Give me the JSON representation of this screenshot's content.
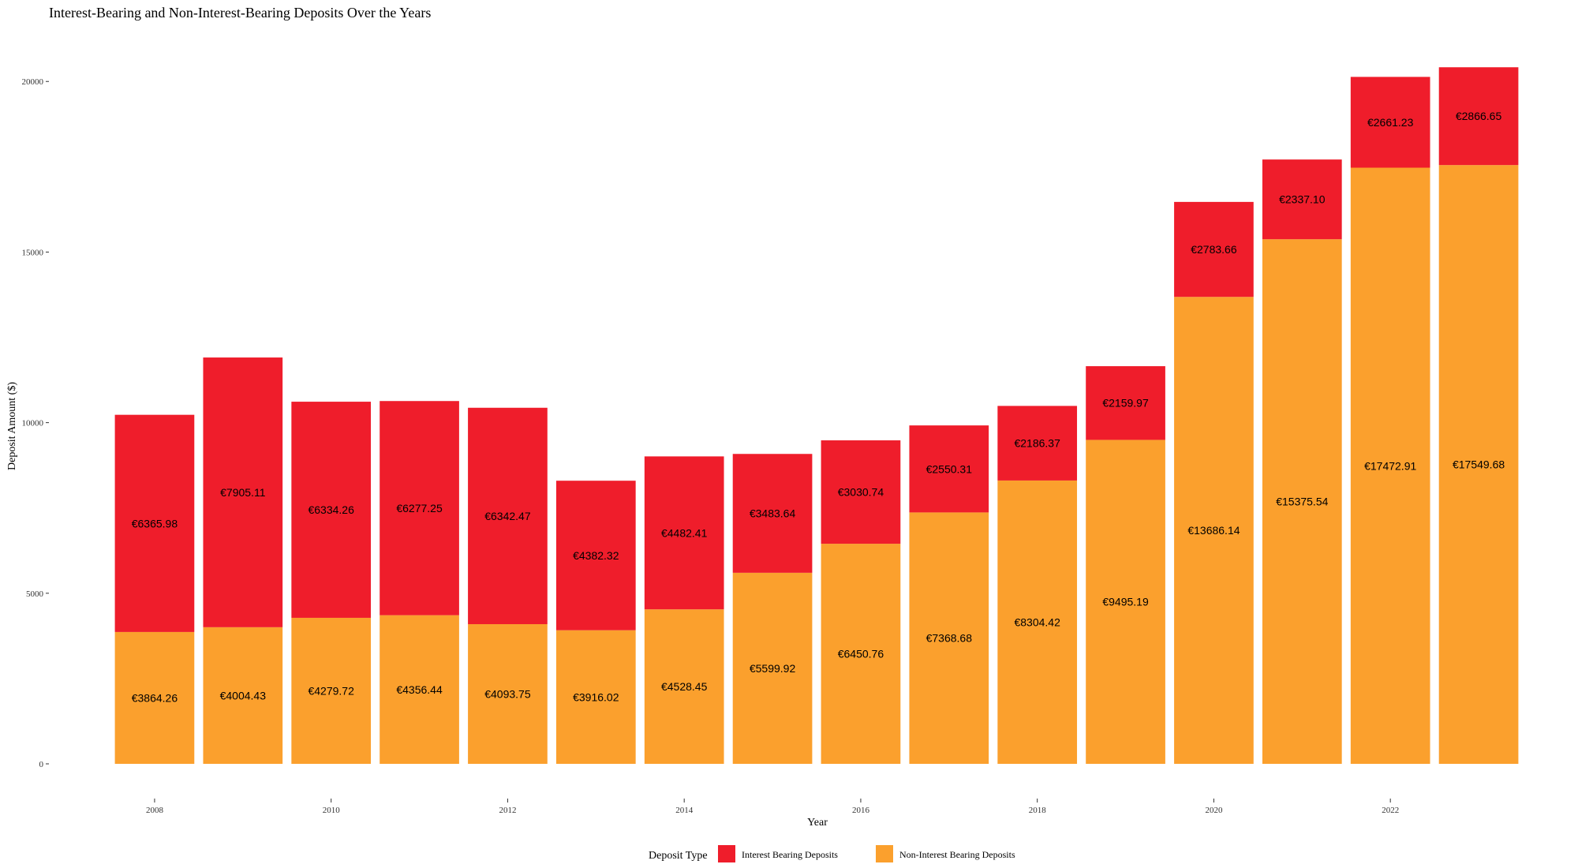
{
  "chart_data": {
    "type": "bar",
    "stacked": true,
    "title": "Interest-Bearing and Non-Interest-Bearing Deposits Over the Years",
    "xlabel": "Year",
    "ylabel": "Deposit Amount ($)",
    "ylim": [
      0,
      21000
    ],
    "yticks": [
      0,
      5000,
      10000,
      15000,
      20000
    ],
    "ytick_labels": [
      "0",
      "5000",
      "10000",
      "15000",
      "20000"
    ],
    "x": [
      2008,
      2009,
      2010,
      2011,
      2012,
      2013,
      2014,
      2015,
      2016,
      2017,
      2018,
      2019,
      2020,
      2021,
      2022,
      2023
    ],
    "xticks": [
      2008,
      2010,
      2012,
      2014,
      2016,
      2018,
      2020,
      2022
    ],
    "xtick_labels": [
      "2008",
      "2010",
      "2012",
      "2014",
      "2016",
      "2018",
      "2020",
      "2022"
    ],
    "grid": false,
    "legend": {
      "position": "bottom",
      "title": "Deposit Type"
    },
    "series": [
      {
        "name": "Non-Interest Bearing Deposits",
        "color": "#FBA02D",
        "values": [
          3864.26,
          4004.43,
          4279.72,
          4356.44,
          4093.75,
          3916.02,
          4528.45,
          5599.92,
          6450.76,
          7368.68,
          8304.42,
          9495.19,
          13686.14,
          15375.54,
          17472.91,
          17549.68
        ],
        "labels": [
          "€3864.26",
          "€4004.43",
          "€4279.72",
          "€4356.44",
          "€4093.75",
          "€3916.02",
          "€4528.45",
          "€5599.92",
          "€6450.76",
          "€7368.68",
          "€8304.42",
          "€9495.19",
          "€13686.14",
          "€15375.54",
          "€17472.91",
          "€17549.68"
        ]
      },
      {
        "name": "Interest Bearing Deposits",
        "color": "#EF1D2B",
        "values": [
          6365.98,
          7905.11,
          6334.26,
          6277.25,
          6342.47,
          4382.32,
          4482.41,
          3483.64,
          3030.74,
          2550.31,
          2186.37,
          2159.97,
          2783.66,
          2337.1,
          2661.23,
          2866.65
        ],
        "labels": [
          "€6365.98",
          "€7905.11",
          "€6334.26",
          "€6277.25",
          "€6342.47",
          "€4382.32",
          "€4482.41",
          "€3483.64",
          "€3030.74",
          "€2550.31",
          "€2186.37",
          "€2159.97",
          "€2783.66",
          "€2337.10",
          "€2661.23",
          "€2866.65"
        ]
      }
    ],
    "legend_order": [
      "Interest Bearing Deposits",
      "Non-Interest Bearing Deposits"
    ]
  }
}
